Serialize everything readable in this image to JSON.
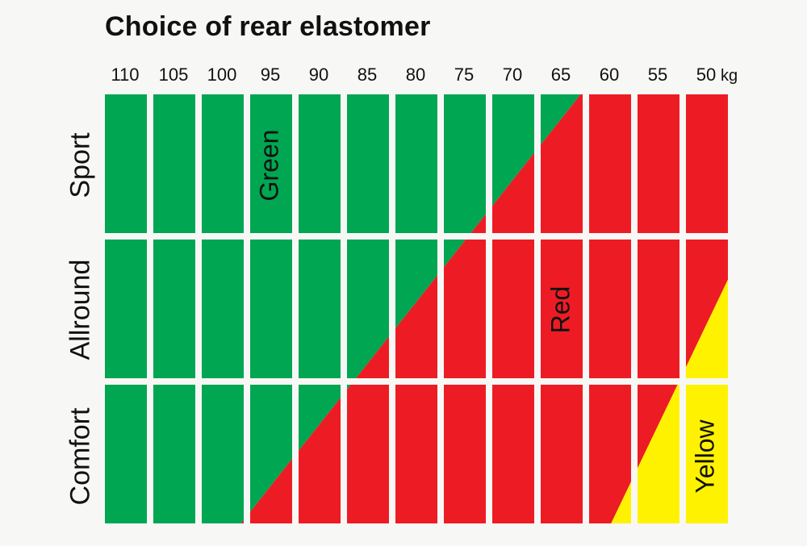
{
  "title": "Choice of rear elastomer",
  "unit": "kg",
  "weights": [
    "110",
    "105",
    "100",
    "95",
    "90",
    "85",
    "80",
    "75",
    "70",
    "65",
    "60",
    "55",
    "50"
  ],
  "rows": [
    "Sport",
    "Allround",
    "Comfort"
  ],
  "zones": {
    "green": {
      "label": "Green",
      "color": "#00a651"
    },
    "red": {
      "label": "Red",
      "color": "#ed1c24"
    },
    "yellow": {
      "label": "Yellow",
      "color": "#fff200"
    }
  }
}
